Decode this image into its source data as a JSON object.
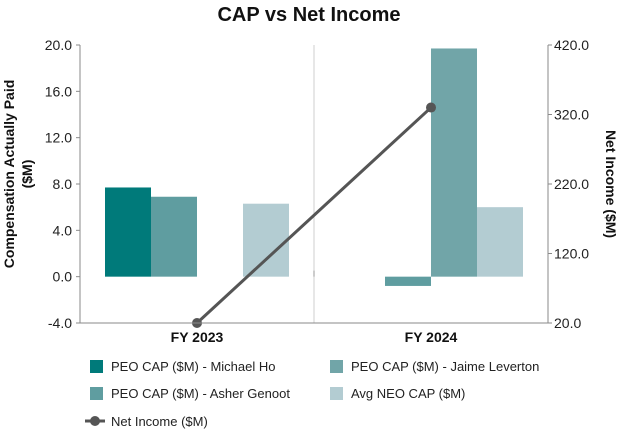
{
  "chart_data": {
    "type": "bar",
    "title": "CAP vs Net Income",
    "categories": [
      "FY 2023",
      "FY 2024"
    ],
    "y_left": {
      "label_lines": [
        "Compensation Actually Paid",
        "($M)"
      ],
      "ylim": [
        -4.0,
        20.0
      ],
      "ticks": [
        "20.0",
        "16.0",
        "12.0",
        "8.0",
        "4.0",
        "0.0",
        "-4.0"
      ]
    },
    "y_right": {
      "label_lines": [
        "Net Income ($M)"
      ],
      "ylim": [
        20.0,
        420.0
      ],
      "ticks": [
        "420.0",
        "320.0",
        "220.0",
        "120.0",
        "20.0"
      ]
    },
    "series": [
      {
        "name": "PEO CAP ($M) - Michael Ho",
        "type": "bar",
        "axis": "left",
        "color": "#007a7a",
        "values": [
          7.7,
          null
        ]
      },
      {
        "name": "PEO CAP ($M) - Asher Genoot",
        "type": "bar",
        "axis": "left",
        "color": "#5f9da0",
        "values": [
          6.9,
          -0.8
        ]
      },
      {
        "name": "PEO CAP ($M) - Jaime Leverton",
        "type": "bar",
        "axis": "left",
        "color": "#71a5a8",
        "values": [
          null,
          19.7
        ]
      },
      {
        "name": "Avg NEO CAP ($M)",
        "type": "bar",
        "axis": "left",
        "color": "#b3ccd2",
        "values": [
          6.3,
          6.0
        ]
      },
      {
        "name": "Net Income ($M)",
        "type": "line",
        "axis": "right",
        "color": "#555555",
        "values": [
          20.0,
          330.0
        ]
      }
    ],
    "legend_position": "bottom",
    "grid": "vertical-category-lines"
  }
}
